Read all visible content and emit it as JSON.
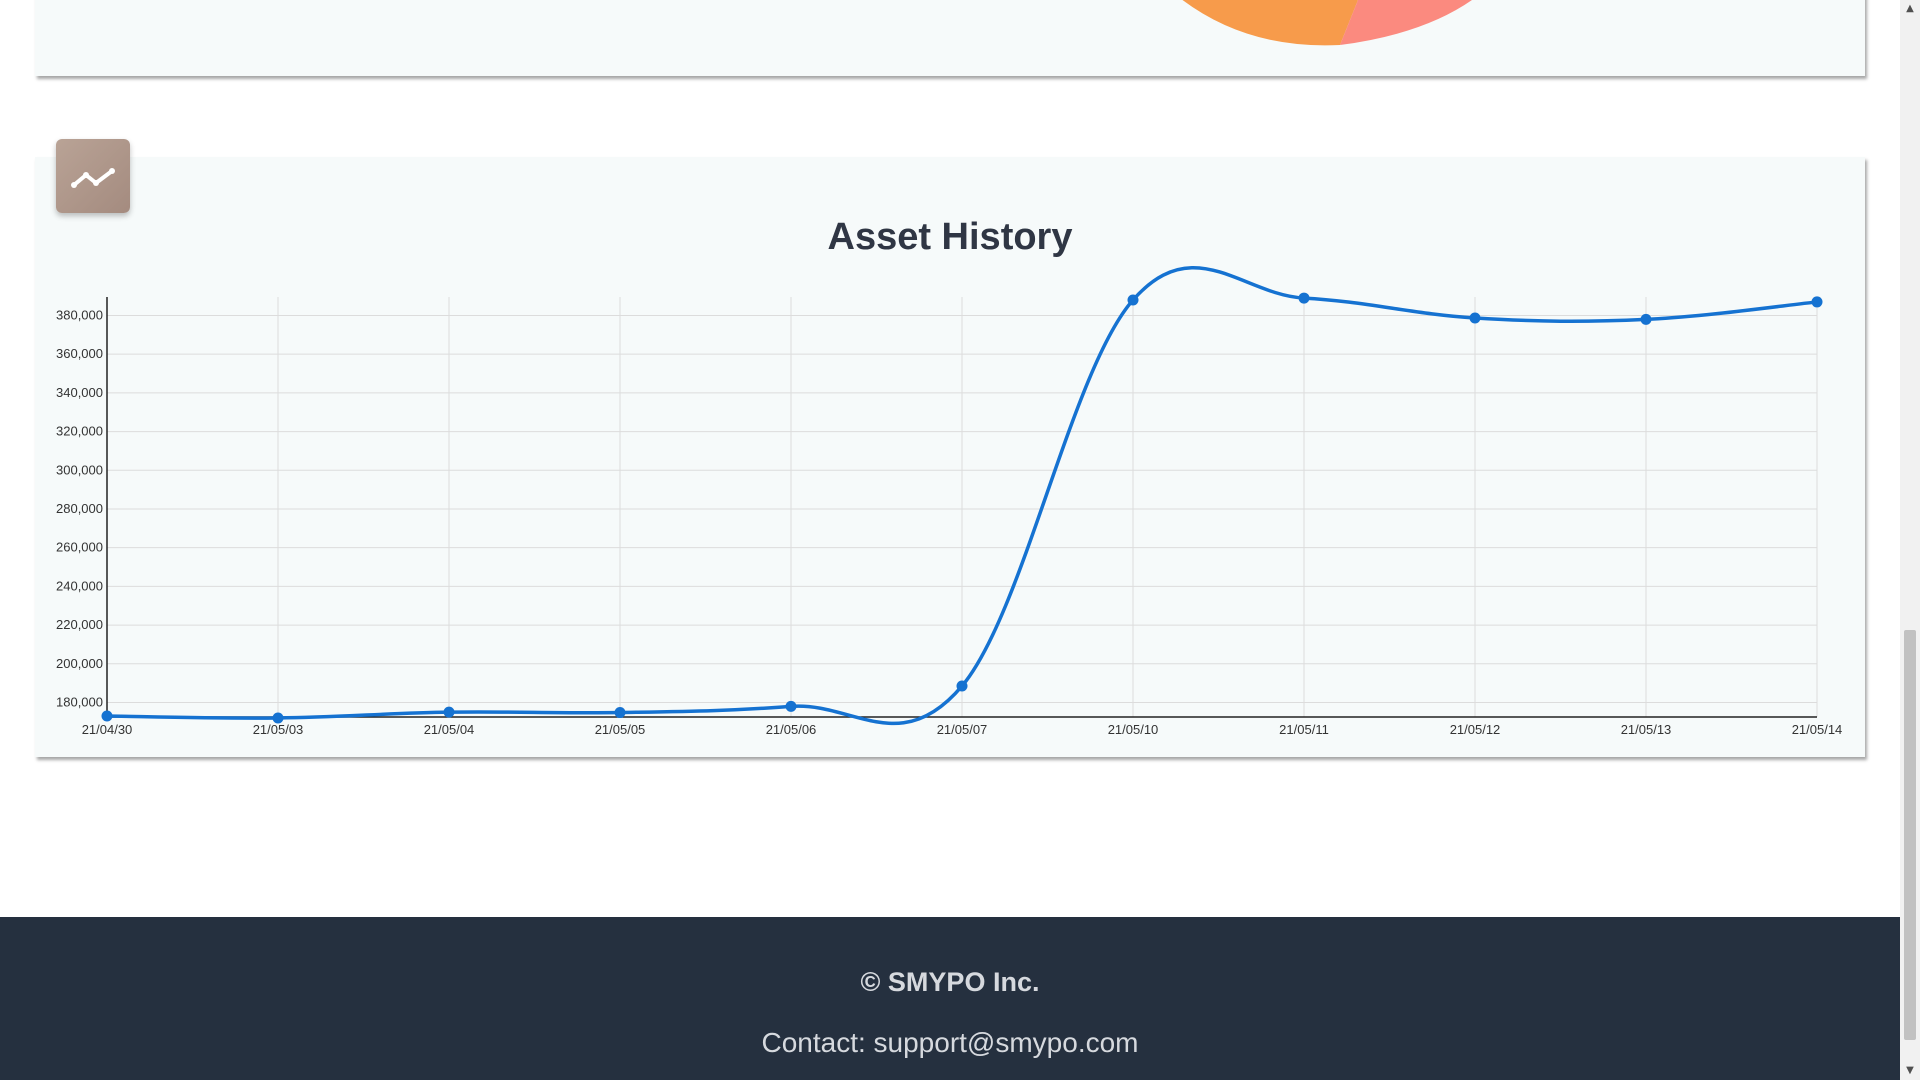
{
  "colors": {
    "line": "#1572d1",
    "pie_orange": "#f79b4b",
    "pie_salmon": "#fb8a7f",
    "footer_bg": "#25303f"
  },
  "icon": "chart-line-icon",
  "chart_data": {
    "type": "line",
    "title": "Asset History",
    "categories": [
      "21/04/30",
      "21/05/03",
      "21/05/04",
      "21/05/05",
      "21/05/06",
      "21/05/07",
      "21/05/10",
      "21/05/11",
      "21/05/12",
      "21/05/13",
      "21/05/14"
    ],
    "series": [
      {
        "values": [
          173000,
          172000,
          175000,
          174800,
          178000,
          188500,
          388000,
          389000,
          378700,
          378000,
          387000
        ]
      }
    ],
    "yticks": [
      "180,000",
      "200,000",
      "220,000",
      "240,000",
      "260,000",
      "280,000",
      "300,000",
      "320,000",
      "340,000",
      "360,000",
      "380,000"
    ],
    "ylim": [
      172500,
      388000
    ],
    "grid": true,
    "legend": "none"
  },
  "footer": {
    "copyright": "© SMYPO Inc.",
    "contact": "Contact: support@smypo.com"
  }
}
